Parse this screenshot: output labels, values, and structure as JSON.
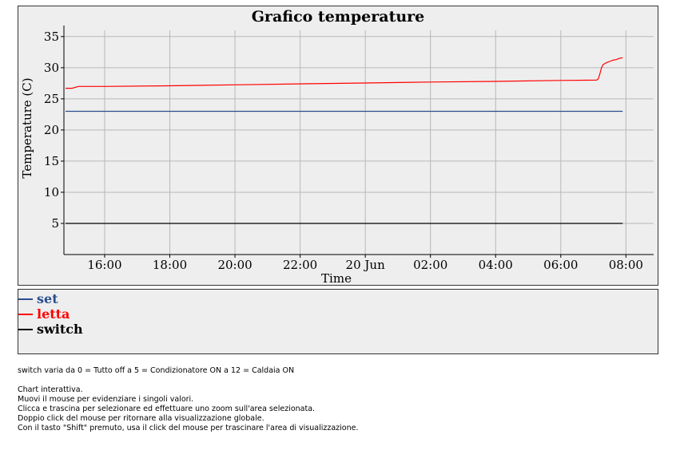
{
  "chart_data": {
    "type": "line",
    "title": "Grafico temperature",
    "xlabel": "Time",
    "ylabel": "Temperature (C)",
    "x_ticks": [
      "16:00",
      "18:00",
      "20:00",
      "22:00",
      "20 Jun",
      "02:00",
      "04:00",
      "06:00",
      "08:00"
    ],
    "x_tick_hours": [
      16,
      18,
      20,
      22,
      24,
      26,
      28,
      30,
      32
    ],
    "x_range_hours": [
      14.75,
      32.85
    ],
    "ylim": [
      0,
      36
    ],
    "y_ticks": [
      5,
      10,
      15,
      20,
      25,
      30,
      35
    ],
    "grid": true,
    "legend_position": "below",
    "series": [
      {
        "name": "set",
        "color": "#2a4d8f",
        "x": [
          14.8,
          31.9
        ],
        "y": [
          23,
          23
        ]
      },
      {
        "name": "letta",
        "color": "#ff0000",
        "x": [
          14.8,
          15.0,
          15.2,
          16.0,
          18.0,
          20.0,
          22.0,
          24.0,
          26.0,
          28.0,
          30.0,
          31.1,
          31.15,
          31.2,
          31.25,
          31.3,
          31.4,
          31.5,
          31.6,
          31.7,
          31.8,
          31.9
        ],
        "y": [
          26.7,
          26.7,
          27.0,
          27.0,
          27.1,
          27.25,
          27.4,
          27.55,
          27.7,
          27.8,
          27.95,
          28.0,
          28.2,
          29.0,
          30.0,
          30.5,
          30.8,
          31.0,
          31.2,
          31.3,
          31.5,
          31.6
        ]
      },
      {
        "name": "switch",
        "color": "#000000",
        "x": [
          14.8,
          31.9
        ],
        "y": [
          5,
          5
        ]
      }
    ]
  },
  "notes": {
    "line1": "switch varia da 0 = Tutto off a 5 = Condizionatore ON a 12 = Caldaia ON",
    "line2": "Chart interattiva.",
    "line3": "Muovi il mouse per evidenziare i singoli valori.",
    "line4": "Clicca e trascina per selezionare ed effettuare uno zoom sull'area selezionata.",
    "line5": "Doppio click del mouse per ritornare alla visualizzazione globale.",
    "line6": "Con il tasto \"Shift\" premuto, usa il click del mouse per trascinare l'area di visualizzazione."
  }
}
